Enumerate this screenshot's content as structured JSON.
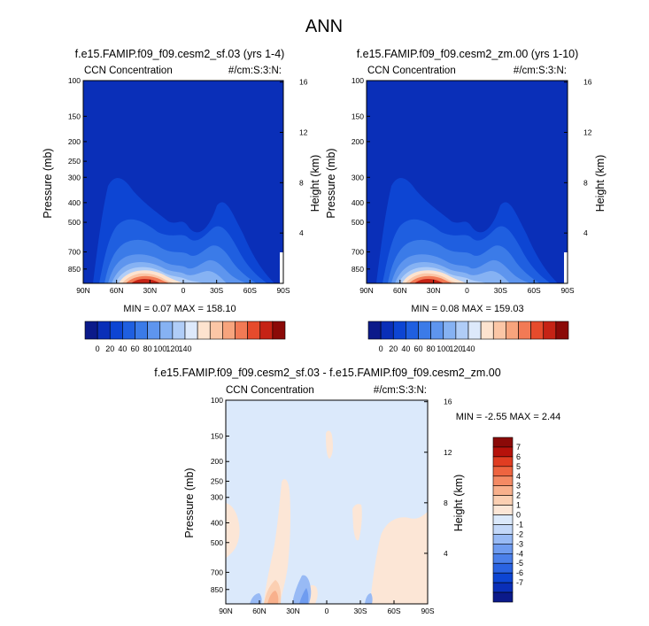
{
  "figure": {
    "title": "ANN",
    "colors": {
      "background": "#ffffff",
      "axes": "#000000"
    }
  },
  "colormaps": {
    "field": [
      "#0b1a8a",
      "#0a2fb8",
      "#0d45d3",
      "#1f5fe0",
      "#3b7be8",
      "#5e95ee",
      "#86b2f3",
      "#b0cdf7",
      "#dde9fb",
      "#fde3cf",
      "#fbc6a6",
      "#f7a47d",
      "#f27a55",
      "#e64b2c",
      "#c62315",
      "#8b0a08"
    ],
    "diff": [
      "#0b1a8a",
      "#0a2fb8",
      "#0d45d3",
      "#2a63e2",
      "#4b80ea",
      "#6f9cf0",
      "#98baf5",
      "#c3d8f9",
      "#dbe9fb",
      "#fce6d6",
      "#fbcfb2",
      "#f8b08c",
      "#f48a64",
      "#ee6440",
      "#e03d22",
      "#b6120b",
      "#8b0a08"
    ]
  },
  "chart_data": [
    {
      "type": "contour",
      "title": "f.e15.FAMIP.f09_f09.cesm2_sf.03 (yrs 1-4)",
      "left_string": "CCN Concentration",
      "right_string": "#/cm:S:3:N:",
      "xlabel": "",
      "ylabel": "Pressure (mb)",
      "ylabel_right": "Height (km)",
      "x_ticks": [
        "90N",
        "60N",
        "30N",
        "0",
        "30S",
        "60S",
        "90S"
      ],
      "y_ticks": [
        "100",
        "150",
        "200",
        "250",
        "300",
        "400",
        "500",
        "700",
        "850"
      ],
      "y_ticks_right": [
        "16",
        "12",
        "8",
        "4"
      ],
      "ylim": [
        1000,
        100
      ],
      "y_scale": "log",
      "min_label": "MIN =  0.07  MAX = 158.10",
      "colorbar_ticks": [
        "0",
        "20",
        "40",
        "60",
        "80",
        "100",
        "120",
        "140"
      ],
      "colorbar_orientation": "horizontal",
      "peak_location": {
        "lat": "30N",
        "pressure": 1000
      }
    },
    {
      "type": "contour",
      "title": "f.e15.FAMIP.f09_f09.cesm2_zm.00 (yrs 1-10)",
      "left_string": "CCN Concentration",
      "right_string": "#/cm:S:3:N:",
      "xlabel": "",
      "ylabel": "Pressure (mb)",
      "ylabel_right": "Height (km)",
      "x_ticks": [
        "90N",
        "60N",
        "30N",
        "0",
        "30S",
        "60S",
        "90S"
      ],
      "y_ticks": [
        "100",
        "150",
        "200",
        "300",
        "400",
        "500",
        "700",
        "850"
      ],
      "y_ticks_right": [
        "16",
        "12",
        "8",
        "4"
      ],
      "ylim": [
        1000,
        100
      ],
      "y_scale": "log",
      "min_label": "MIN =  0.08  MAX = 159.03",
      "colorbar_ticks": [
        "0",
        "20",
        "40",
        "60",
        "80",
        "100",
        "120",
        "140"
      ],
      "colorbar_orientation": "horizontal",
      "peak_location": {
        "lat": "30N",
        "pressure": 1000
      }
    },
    {
      "type": "contour",
      "title": "f.e15.FAMIP.f09_f09.cesm2_sf.03 - f.e15.FAMIP.f09_f09.cesm2_zm.00",
      "left_string": "CCN Concentration",
      "right_string": "#/cm:S:3:N:",
      "xlabel": "",
      "ylabel": "Pressure (mb)",
      "ylabel_right": "Height (km)",
      "x_ticks": [
        "90N",
        "60N",
        "30N",
        "0",
        "30S",
        "60S",
        "90S"
      ],
      "y_ticks": [
        "100",
        "150",
        "200",
        "250",
        "300",
        "400",
        "500",
        "700",
        "850"
      ],
      "y_ticks_right": [
        "16",
        "12",
        "8",
        "4"
      ],
      "ylim": [
        1000,
        100
      ],
      "y_scale": "log",
      "min_label": "MIN =  -2.55  MAX =  2.44",
      "colorbar_ticks": [
        "7",
        "6",
        "5",
        "4",
        "3",
        "2",
        "1",
        "0",
        "-1",
        "-2",
        "-3",
        "-4",
        "-5",
        "-6",
        "-7"
      ],
      "colorbar_orientation": "vertical"
    }
  ]
}
